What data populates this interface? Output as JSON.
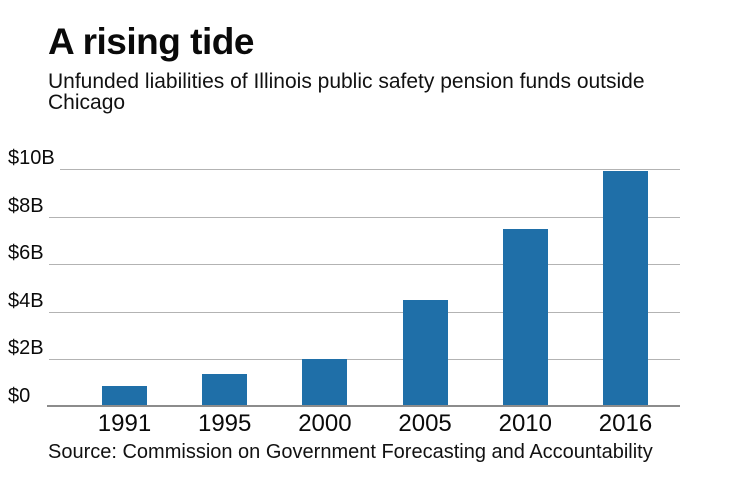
{
  "header": {
    "title": "A rising tide",
    "subtitle_lines": [
      "Unfunded liabilities of Illinois public safety pension funds outside",
      "Chicago"
    ]
  },
  "source": "Source: Commission on Government Forecasting and Accountability",
  "colors": {
    "bar": "#1f6fa8",
    "gridline": "#b3b3b3",
    "baseline": "#8c8c8c"
  },
  "chart_data": {
    "type": "bar",
    "title": "A rising tide",
    "subtitle": "Unfunded liabilities of Illinois public safety pension funds outside Chicago",
    "categories": [
      "1991",
      "1995",
      "2000",
      "2005",
      "2010",
      "2016"
    ],
    "values": [
      0.9,
      1.4,
      2.0,
      4.5,
      7.5,
      9.9
    ],
    "unit": "billions of dollars",
    "xlabel": "",
    "ylabel": "",
    "ylim": [
      0,
      10
    ],
    "y_ticks": [
      {
        "value": 0,
        "label": "$0"
      },
      {
        "value": 2,
        "label": "$2B"
      },
      {
        "value": 4,
        "label": "$4B"
      },
      {
        "value": 6,
        "label": "$6B"
      },
      {
        "value": 8,
        "label": "$8B"
      },
      {
        "value": 10,
        "label": "$10B"
      }
    ],
    "grid": true,
    "legend": false
  }
}
